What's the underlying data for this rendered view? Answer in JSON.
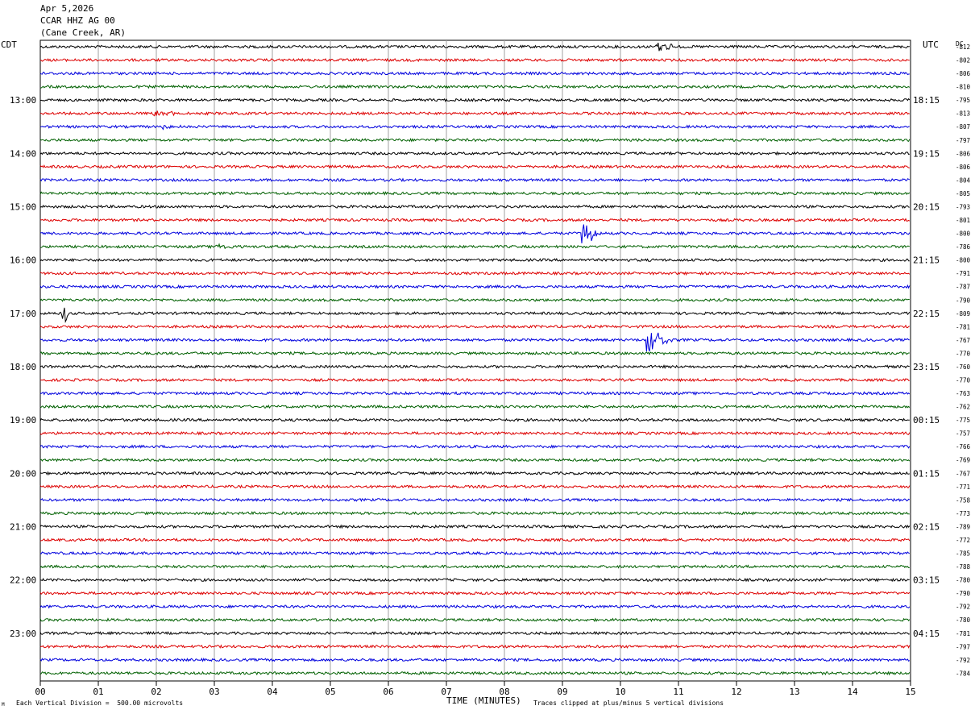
{
  "header": {
    "date": "Apr 5,2026",
    "station": "CCAR HHZ AG 00",
    "location": "(Cane Creek, AR)"
  },
  "left_tz": "CDT",
  "right_tz": "UTC",
  "dc_label": "DC",
  "footer": {
    "scale": "Each Vertical Division =  500.00 microvolts",
    "clip": "Traces clipped at plus/minus 5 vertical divisions",
    "mark": "M"
  },
  "colors": {
    "row_cycle": [
      "#000000",
      "#dd0000",
      "#0000dd",
      "#006000"
    ],
    "grid": "#a0a0a0"
  },
  "chart_data": {
    "type": "line",
    "title": "",
    "xlabel": "TIME (MINUTES)",
    "x_ticks": [
      "00",
      "01",
      "02",
      "03",
      "04",
      "05",
      "06",
      "07",
      "08",
      "09",
      "10",
      "11",
      "12",
      "13",
      "14",
      "15"
    ],
    "xlim": [
      0,
      15
    ],
    "rows_per_hour": 4,
    "left_hour_labels": [
      "13:00",
      "14:00",
      "15:00",
      "16:00",
      "17:00",
      "18:00",
      "19:00",
      "20:00",
      "21:00",
      "22:00",
      "23:00"
    ],
    "right_hour_labels": [
      "18:15",
      "19:15",
      "20:15",
      "21:15",
      "22:15",
      "23:15",
      "00:15",
      "01:15",
      "02:15",
      "03:15",
      "04:15"
    ],
    "row_dc_offsets": [
      "-812",
      "-802",
      "-806",
      "-810",
      "-795",
      "-813",
      "-807",
      "-797",
      "-806",
      "-806",
      "-804",
      "-805",
      "-793",
      "-801",
      "-800",
      "-786",
      "-800",
      "-791",
      "-787",
      "-790",
      "-809",
      "-781",
      "-767",
      "-770",
      "-760",
      "-770",
      "-763",
      "-762",
      "-775",
      "-757",
      "-766",
      "-769",
      "-767",
      "-771",
      "-758",
      "-773",
      "-789",
      "-772",
      "-785",
      "-788",
      "-780",
      "-790",
      "-792",
      "-780",
      "-781",
      "-797",
      "-792",
      "-784"
    ],
    "events": [
      {
        "row": 0,
        "minute_start": 10.6,
        "minute_end": 11.0,
        "amplitude": 8
      },
      {
        "row": 5,
        "minute_start": 1.9,
        "minute_end": 2.5,
        "amplitude": 4
      },
      {
        "row": 6,
        "minute_start": 2.0,
        "minute_end": 2.6,
        "amplitude": 3
      },
      {
        "row": 14,
        "minute_start": 9.33,
        "minute_end": 9.7,
        "amplitude": 16
      },
      {
        "row": 15,
        "minute_start": 3.0,
        "minute_end": 3.5,
        "amplitude": 3
      },
      {
        "row": 20,
        "minute_start": 0.38,
        "minute_end": 0.5,
        "amplitude": 22
      },
      {
        "row": 22,
        "minute_start": 10.45,
        "minute_end": 10.9,
        "amplitude": 16
      }
    ]
  }
}
